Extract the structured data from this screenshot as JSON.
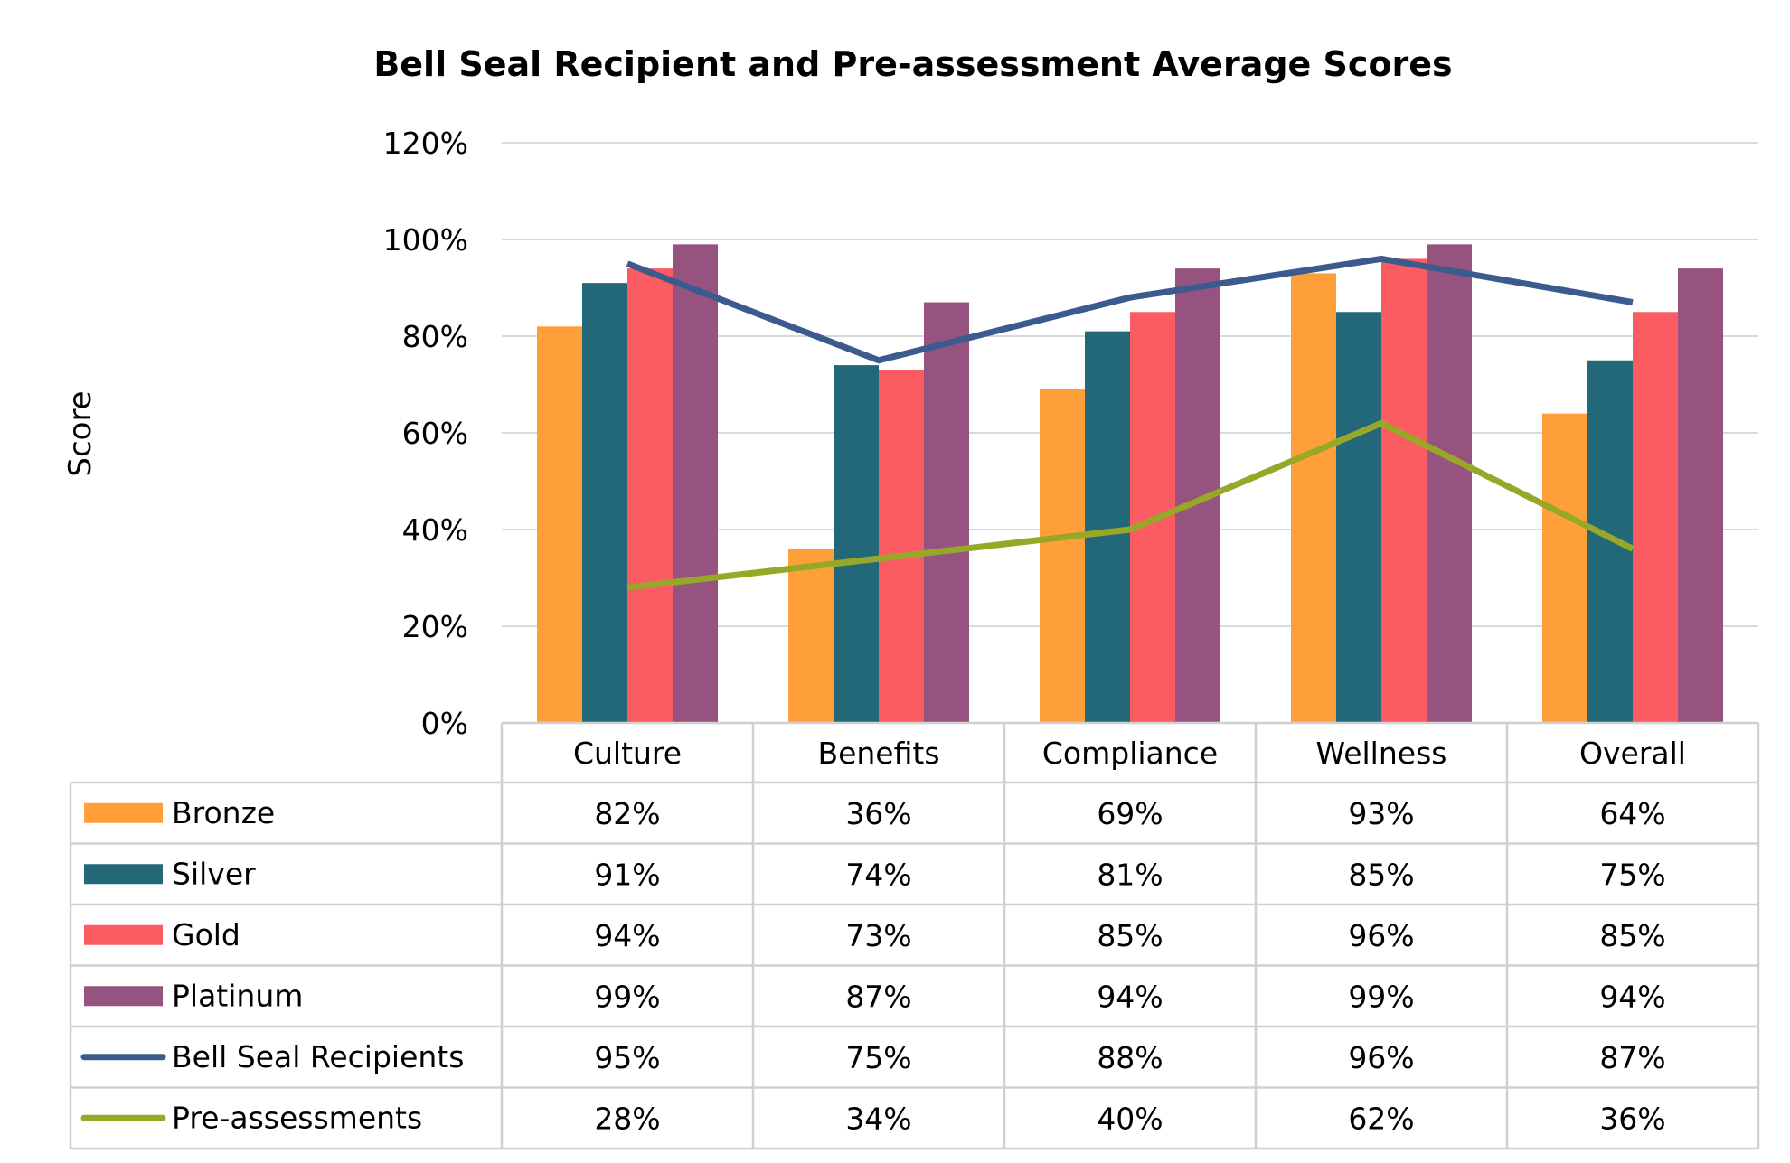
{
  "chart_data": {
    "type": "bar",
    "title": "Bell Seal Recipient and Pre-assessment Average Scores",
    "ylabel": "Score",
    "xlabel": "",
    "ylim": [
      0,
      120
    ],
    "yticks": [
      "0%",
      "20%",
      "40%",
      "60%",
      "80%",
      "100%",
      "120%"
    ],
    "grid": true,
    "legend": "data-table",
    "categories": [
      "Culture",
      "Benefits",
      "Compliance",
      "Wellness",
      "Overall"
    ],
    "series": [
      {
        "name": "Bronze",
        "kind": "bar",
        "color": "#FF9F3A",
        "values": [
          82,
          36,
          69,
          93,
          64
        ],
        "labels": [
          "82%",
          "36%",
          "69%",
          "93%",
          "64%"
        ]
      },
      {
        "name": "Silver",
        "kind": "bar",
        "color": "#236878",
        "values": [
          91,
          74,
          81,
          85,
          75
        ],
        "labels": [
          "91%",
          "74%",
          "81%",
          "85%",
          "75%"
        ]
      },
      {
        "name": "Gold",
        "kind": "bar",
        "color": "#FA5C61",
        "values": [
          94,
          73,
          85,
          96,
          85
        ],
        "labels": [
          "94%",
          "73%",
          "85%",
          "96%",
          "85%"
        ]
      },
      {
        "name": "Platinum",
        "kind": "bar",
        "color": "#97537F",
        "values": [
          99,
          87,
          94,
          99,
          94
        ],
        "labels": [
          "99%",
          "87%",
          "94%",
          "99%",
          "94%"
        ]
      },
      {
        "name": "Bell Seal Recipients",
        "kind": "line",
        "color": "#3B5B8E",
        "values": [
          95,
          75,
          88,
          96,
          87
        ],
        "labels": [
          "95%",
          "75%",
          "88%",
          "96%",
          "87%"
        ]
      },
      {
        "name": "Pre-assessments",
        "kind": "line",
        "color": "#97A828",
        "values": [
          28,
          34,
          40,
          62,
          36
        ],
        "labels": [
          "28%",
          "34%",
          "40%",
          "62%",
          "36%"
        ]
      }
    ]
  }
}
